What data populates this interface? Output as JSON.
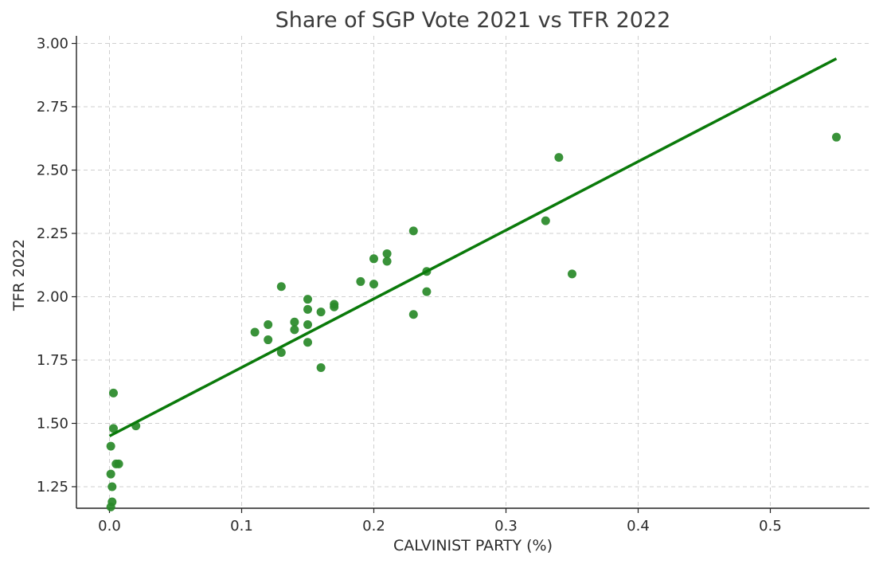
{
  "chart_data": {
    "type": "scatter",
    "title": "Share of SGP Vote 2021 vs TFR 2022",
    "xlabel": "CALVINIST PARTY (%)",
    "ylabel": "TFR 2022",
    "xlim": [
      -0.025,
      0.575
    ],
    "ylim": [
      1.165,
      3.03
    ],
    "grid": true,
    "x_ticks": [
      0.0,
      0.1,
      0.2,
      0.3,
      0.4,
      0.5
    ],
    "x_tick_labels": [
      "0.0",
      "0.1",
      "0.2",
      "0.3",
      "0.4",
      "0.5"
    ],
    "y_ticks": [
      1.25,
      1.5,
      1.75,
      2.0,
      2.25,
      2.5,
      2.75,
      3.0
    ],
    "y_tick_labels": [
      "1.25",
      "1.50",
      "1.75",
      "2.00",
      "2.25",
      "2.50",
      "2.75",
      "3.00"
    ],
    "points_color": "#2a8a2a",
    "points": [
      {
        "x": 0.003,
        "y": 1.62
      },
      {
        "x": 0.003,
        "y": 1.48
      },
      {
        "x": 0.001,
        "y": 1.41
      },
      {
        "x": 0.005,
        "y": 1.34
      },
      {
        "x": 0.007,
        "y": 1.34
      },
      {
        "x": 0.001,
        "y": 1.3
      },
      {
        "x": 0.002,
        "y": 1.25
      },
      {
        "x": 0.002,
        "y": 1.19
      },
      {
        "x": 0.001,
        "y": 1.17
      },
      {
        "x": 0.02,
        "y": 1.49
      },
      {
        "x": 0.11,
        "y": 1.86
      },
      {
        "x": 0.12,
        "y": 1.89
      },
      {
        "x": 0.12,
        "y": 1.83
      },
      {
        "x": 0.13,
        "y": 2.04
      },
      {
        "x": 0.13,
        "y": 1.78
      },
      {
        "x": 0.14,
        "y": 1.9
      },
      {
        "x": 0.14,
        "y": 1.87
      },
      {
        "x": 0.15,
        "y": 1.99
      },
      {
        "x": 0.15,
        "y": 1.95
      },
      {
        "x": 0.15,
        "y": 1.89
      },
      {
        "x": 0.15,
        "y": 1.82
      },
      {
        "x": 0.16,
        "y": 1.94
      },
      {
        "x": 0.16,
        "y": 1.72
      },
      {
        "x": 0.17,
        "y": 1.97
      },
      {
        "x": 0.17,
        "y": 1.96
      },
      {
        "x": 0.19,
        "y": 2.06
      },
      {
        "x": 0.2,
        "y": 2.15
      },
      {
        "x": 0.2,
        "y": 2.05
      },
      {
        "x": 0.21,
        "y": 2.17
      },
      {
        "x": 0.21,
        "y": 2.14
      },
      {
        "x": 0.23,
        "y": 2.26
      },
      {
        "x": 0.23,
        "y": 1.93
      },
      {
        "x": 0.24,
        "y": 2.1
      },
      {
        "x": 0.24,
        "y": 2.02
      },
      {
        "x": 0.33,
        "y": 2.3
      },
      {
        "x": 0.34,
        "y": 2.55
      },
      {
        "x": 0.35,
        "y": 2.09
      },
      {
        "x": 0.55,
        "y": 2.63
      }
    ],
    "trend_line": {
      "color": "#0a7a0a",
      "from": {
        "x": 0.0,
        "y": 1.45
      },
      "to": {
        "x": 0.55,
        "y": 2.94
      }
    }
  }
}
